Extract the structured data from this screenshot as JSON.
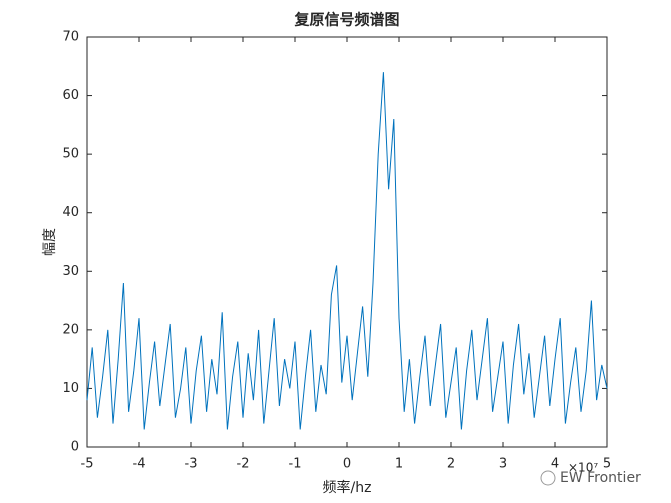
{
  "chart_data": {
    "type": "line",
    "title": "复原信号频谱图",
    "x_label": "频率/hz",
    "y_label": "幅度",
    "x_scale_label": "×10⁷",
    "watermark": "EW Frontier",
    "x": [
      -5.0,
      -4.9,
      -4.8,
      -4.7,
      -4.6,
      -4.5,
      -4.4,
      -4.3,
      -4.2,
      -4.1,
      -4.0,
      -3.9,
      -3.8,
      -3.7,
      -3.6,
      -3.5,
      -3.4,
      -3.3,
      -3.2,
      -3.1,
      -3.0,
      -2.9,
      -2.8,
      -2.7,
      -2.6,
      -2.5,
      -2.4,
      -2.3,
      -2.2,
      -2.1,
      -2.0,
      -1.9,
      -1.8,
      -1.7,
      -1.6,
      -1.5,
      -1.4,
      -1.3,
      -1.2,
      -1.1,
      -1.0,
      -0.9,
      -0.8,
      -0.7,
      -0.6,
      -0.5,
      -0.4,
      -0.3,
      -0.2,
      -0.1,
      0.0,
      0.1,
      0.2,
      0.3,
      0.4,
      0.5,
      0.6,
      0.7,
      0.8,
      0.9,
      1.0,
      1.1,
      1.2,
      1.3,
      1.4,
      1.5,
      1.6,
      1.7,
      1.8,
      1.9,
      2.0,
      2.1,
      2.2,
      2.3,
      2.4,
      2.5,
      2.6,
      2.7,
      2.8,
      2.9,
      3.0,
      3.1,
      3.2,
      3.3,
      3.4,
      3.5,
      3.6,
      3.7,
      3.8,
      3.9,
      4.0,
      4.1,
      4.2,
      4.3,
      4.4,
      4.5,
      4.6,
      4.7,
      4.8,
      4.9,
      5.0
    ],
    "series": [
      {
        "color": "#0072bd",
        "values": [
          8,
          17,
          5,
          12,
          20,
          4,
          15,
          28,
          6,
          13,
          22,
          3,
          11,
          18,
          7,
          14,
          21,
          5,
          10,
          17,
          4,
          13,
          19,
          6,
          15,
          9,
          23,
          3,
          12,
          18,
          5,
          16,
          8,
          20,
          4,
          13,
          22,
          7,
          15,
          10,
          18,
          3,
          12,
          20,
          6,
          14,
          9,
          26,
          31,
          11,
          19,
          8,
          16,
          24,
          12,
          28,
          50,
          64,
          44,
          56,
          22,
          6,
          15,
          4,
          12,
          19,
          7,
          14,
          21,
          5,
          11,
          17,
          3,
          13,
          20,
          8,
          15,
          22,
          6,
          12,
          18,
          4,
          14,
          21,
          9,
          16,
          5,
          12,
          19,
          7,
          15,
          22,
          4,
          11,
          17,
          6,
          13,
          25,
          8,
          14,
          10
        ]
      }
    ],
    "xlim": [
      -5,
      5
    ],
    "ylim": [
      0,
      70
    ],
    "xticks": [
      -5,
      -4,
      -3,
      -2,
      -1,
      0,
      1,
      2,
      3,
      4,
      5
    ],
    "yticks": [
      0,
      10,
      20,
      30,
      40,
      50,
      60,
      70
    ]
  }
}
